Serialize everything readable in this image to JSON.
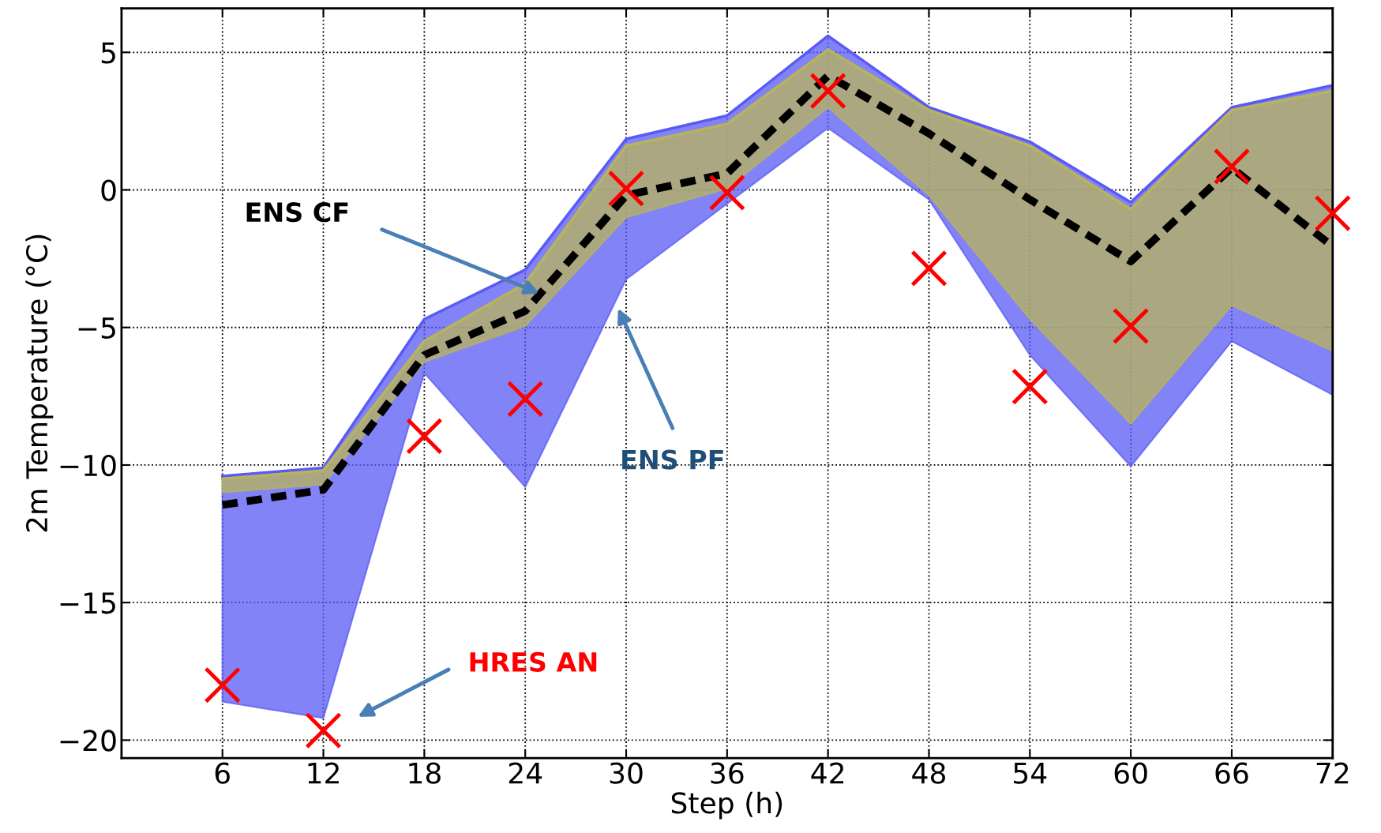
{
  "chart_data": {
    "type": "line",
    "xlabel": "Step (h)",
    "ylabel": "2m Temperature (°C)",
    "x": [
      6,
      12,
      18,
      24,
      30,
      36,
      42,
      48,
      54,
      60,
      66,
      72
    ],
    "xlim": [
      0,
      72
    ],
    "xticks": [
      6,
      12,
      18,
      24,
      30,
      36,
      42,
      48,
      54,
      60,
      66,
      72
    ],
    "ylim": [
      -20.65,
      6.6
    ],
    "yticks": [
      {
        "value": -20,
        "label": "−20"
      },
      {
        "value": -15,
        "label": "−15"
      },
      {
        "value": -10,
        "label": "−10"
      },
      {
        "value": -5,
        "label": "−5"
      },
      0,
      5
    ],
    "grid": true,
    "legend": false,
    "series": [
      {
        "type": "line",
        "color": "#5a5af5",
        "lower": [
          -18.6,
          -19.2,
          -6.65,
          -10.8,
          -3.25,
          -0.5,
          2.25,
          -0.35,
          -6.0,
          -10.05,
          -5.5,
          -7.45
        ],
        "values": [
          -10.4,
          -10.1,
          -4.7,
          -2.9,
          1.85,
          2.7,
          5.6,
          3.0,
          1.75,
          -0.45,
          3.0,
          3.8
        ],
        "upper": [
          -10.4,
          -10.1,
          -4.7,
          -2.9,
          1.85,
          2.7,
          5.6,
          3.0,
          1.75,
          -0.45,
          3.0,
          3.8
        ]
      },
      {
        "type": "line",
        "color": "#b8b45a",
        "lower": [
          -11.0,
          -10.7,
          -6.25,
          -4.95,
          -1.0,
          0.05,
          3.0,
          -0.2,
          -4.7,
          -8.5,
          -4.2,
          -5.85
        ],
        "values": [
          -10.5,
          -10.2,
          -5.5,
          -3.4,
          1.6,
          2.4,
          5.1,
          2.9,
          1.6,
          -0.7,
          2.9,
          3.6
        ],
        "upper": [
          -10.5,
          -10.2,
          -5.5,
          -3.4,
          1.6,
          2.4,
          5.1,
          2.9,
          1.6,
          -0.7,
          2.9,
          3.6
        ]
      },
      {
        "color": "#000000",
        "line_style": "dashed",
        "marker": "none",
        "values": [
          -11.45,
          -10.9,
          -6.0,
          -4.4,
          -0.2,
          0.6,
          4.15,
          2.05,
          -0.35,
          -2.6,
          0.8,
          -2.05
        ]
      },
      {
        "type": "scatter",
        "color": "#ff0000",
        "marker": "cross",
        "values": [
          -18.0,
          -19.65,
          -8.95,
          -7.6,
          0.05,
          -0.1,
          3.6,
          -2.85,
          -7.15,
          -4.95,
          0.85,
          -0.85
        ]
      }
    ],
    "annotations": [
      "ENS CF",
      "ENS PF",
      "HRES AN"
    ]
  }
}
